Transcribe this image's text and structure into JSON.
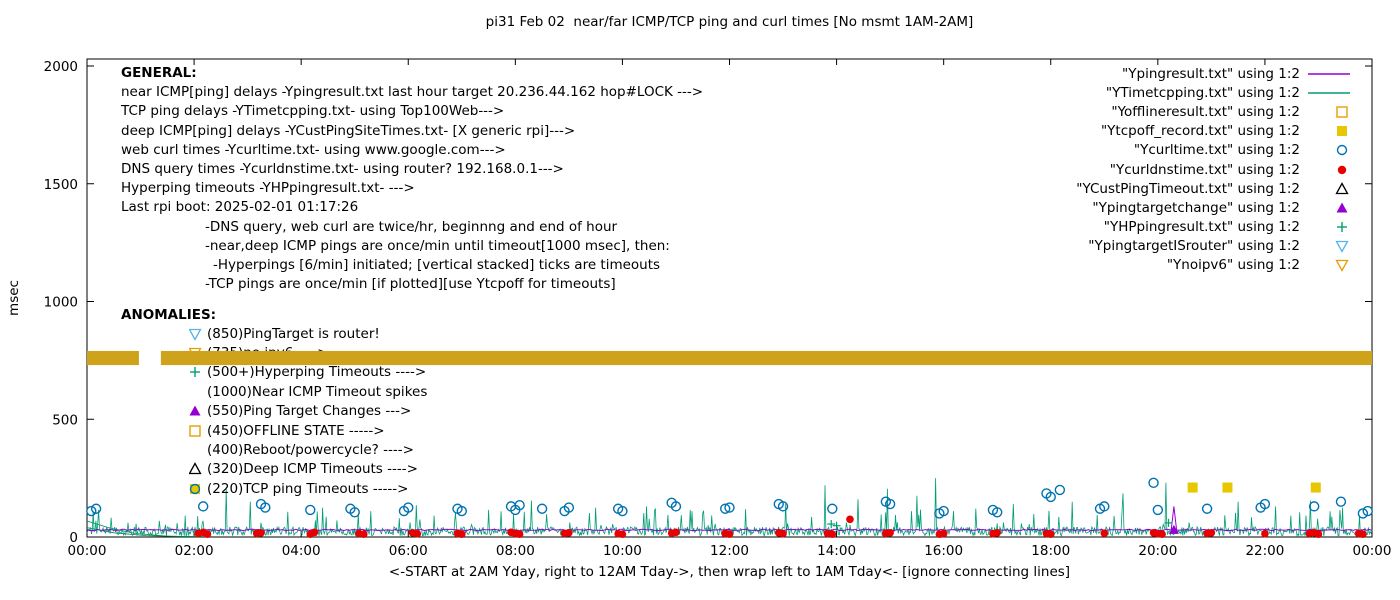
{
  "chart_data": {
    "type": "line",
    "title": "pi31 Feb 02  near/far ICMP/TCP ping and curl times [No msmt 1AM-2AM]",
    "xlabel": "<-START at 2AM Yday, right to 12AM Tday->, then wrap left to 1AM Tday<- [ignore connecting lines]",
    "ylabel": "msec",
    "xlim": [
      0,
      24
    ],
    "ylim": [
      0,
      2000
    ],
    "grid": false,
    "legend_position": "top-right",
    "x_ticks": {
      "hours": [
        0,
        2,
        4,
        6,
        8,
        10,
        12,
        14,
        16,
        18,
        20,
        22,
        24
      ],
      "labels": [
        "00:00",
        "02:00",
        "04:00",
        "06:00",
        "08:00",
        "10:00",
        "12:00",
        "14:00",
        "16:00",
        "18:00",
        "20:00",
        "22:00",
        "00:00"
      ]
    },
    "y_ticks": [
      0,
      500,
      1000,
      1500,
      2000
    ],
    "legend": [
      {
        "label": "\"Ypingresult.txt\" using 1:2",
        "marker": "line",
        "color": "#9400d3"
      },
      {
        "label": "\"YTimetcpping.txt\" using 1:2",
        "marker": "line",
        "color": "#009e73"
      },
      {
        "label": "\"Yofflineresult.txt\" using 1:2",
        "marker": "open-square",
        "color": "#e69f00"
      },
      {
        "label": "\"Ytcpoff_record.txt\" using 1:2",
        "marker": "filled-square",
        "color": "#e6c700"
      },
      {
        "label": "\"Ycurltime.txt\" using 1:2",
        "marker": "open-circle",
        "color": "#0072b2"
      },
      {
        "label": "\"Ycurldnstime.txt\" using 1:2",
        "marker": "filled-circle",
        "color": "#e60000"
      },
      {
        "label": "\"YCustPingTimeout.txt\" using 1:2",
        "marker": "open-triangle-up",
        "color": "#000000"
      },
      {
        "label": "\"Ypingtargetchange\" using 1:2",
        "marker": "filled-triangle-up",
        "color": "#9400d3"
      },
      {
        "label": "\"YHPpingresult.txt\" using 1:2",
        "marker": "plus",
        "color": "#009e73"
      },
      {
        "label": "\"YpingtargetISrouter\" using 1:2",
        "marker": "open-triangle-down",
        "color": "#56b4e9"
      },
      {
        "label": "\"Ynoipv6\" using 1:2",
        "marker": "open-triangle-down",
        "color": "#e69f00"
      }
    ],
    "band": {
      "name": "offline-state-band",
      "y_from": 730,
      "y_to": 790,
      "segments": [
        [
          0,
          0.97
        ],
        [
          1.38,
          24
        ]
      ],
      "color": "#cfa21b"
    },
    "series": {
      "ping_line": {
        "name": "Ypingresult near ICMP ping delay",
        "color": "#9400d3",
        "base": 27,
        "jitter": 6,
        "seed": 5,
        "step_min": 3,
        "spikes": [
          [
            20.3,
            130
          ]
        ]
      },
      "tcp_line": {
        "name": "YTimetcpping TCP ping delay",
        "color": "#009e73",
        "base": 5,
        "jitter": 38,
        "seed": 13,
        "step_min": 1,
        "spike_chance": 0.06,
        "spike_base": 50,
        "spike_extra": 70,
        "spikes": [
          [
            0.22,
            115
          ],
          [
            2.6,
            205
          ],
          [
            3.05,
            150
          ],
          [
            4.4,
            125
          ],
          [
            5.3,
            110
          ],
          [
            6.15,
            135
          ],
          [
            7.5,
            115
          ],
          [
            8.3,
            155
          ],
          [
            9.5,
            125
          ],
          [
            10.45,
            130
          ],
          [
            11.3,
            110
          ],
          [
            12.3,
            118
          ],
          [
            13.05,
            140
          ],
          [
            13.78,
            220
          ],
          [
            14.4,
            160
          ],
          [
            14.95,
            205
          ],
          [
            15.5,
            175
          ],
          [
            15.85,
            250
          ],
          [
            16.6,
            120
          ],
          [
            17.3,
            140
          ],
          [
            18.4,
            150
          ],
          [
            19.35,
            185
          ],
          [
            20.15,
            230
          ],
          [
            21.5,
            150
          ],
          [
            22.2,
            130
          ],
          [
            22.85,
            155
          ],
          [
            23.45,
            125
          ]
        ]
      },
      "curl_points": {
        "name": "Ycurltime web curl times",
        "color": "#0072b2",
        "marker": "open-circle",
        "points": [
          [
            0.08,
            110
          ],
          [
            0.17,
            120
          ],
          [
            2.17,
            130
          ],
          [
            3.25,
            140
          ],
          [
            3.33,
            125
          ],
          [
            4.17,
            115
          ],
          [
            4.92,
            120
          ],
          [
            5.0,
            105
          ],
          [
            5.92,
            110
          ],
          [
            6.0,
            125
          ],
          [
            6.92,
            120
          ],
          [
            7.0,
            110
          ],
          [
            7.92,
            130
          ],
          [
            8.0,
            115
          ],
          [
            8.08,
            135
          ],
          [
            8.5,
            120
          ],
          [
            8.92,
            110
          ],
          [
            9.0,
            125
          ],
          [
            9.92,
            120
          ],
          [
            10.0,
            110
          ],
          [
            10.92,
            145
          ],
          [
            11.0,
            130
          ],
          [
            11.92,
            120
          ],
          [
            12.0,
            125
          ],
          [
            12.92,
            140
          ],
          [
            13.0,
            130
          ],
          [
            13.92,
            120
          ],
          [
            14.92,
            150
          ],
          [
            15.0,
            140
          ],
          [
            15.92,
            100
          ],
          [
            16.0,
            110
          ],
          [
            16.92,
            115
          ],
          [
            17.0,
            105
          ],
          [
            17.92,
            185
          ],
          [
            18.0,
            170
          ],
          [
            18.17,
            200
          ],
          [
            18.92,
            120
          ],
          [
            19.0,
            130
          ],
          [
            19.92,
            230
          ],
          [
            20.0,
            115
          ],
          [
            20.92,
            120
          ],
          [
            21.92,
            125
          ],
          [
            22.0,
            140
          ],
          [
            22.92,
            130
          ],
          [
            23.42,
            150
          ],
          [
            23.83,
            100
          ],
          [
            23.92,
            110
          ]
        ]
      },
      "dns_points": {
        "name": "Ycurldnstime DNS query times",
        "color": "#e60000",
        "marker": "filled-circle",
        "points": [
          [
            2.08,
            15
          ],
          [
            2.17,
            20
          ],
          [
            2.25,
            12
          ],
          [
            3.17,
            15
          ],
          [
            3.25,
            18
          ],
          [
            4.17,
            12
          ],
          [
            4.25,
            20
          ],
          [
            5.08,
            15
          ],
          [
            5.17,
            12
          ],
          [
            6.08,
            18
          ],
          [
            6.17,
            14
          ],
          [
            6.92,
            15
          ],
          [
            7.0,
            12
          ],
          [
            7.92,
            20
          ],
          [
            8.0,
            15
          ],
          [
            8.08,
            12
          ],
          [
            8.92,
            15
          ],
          [
            9.0,
            18
          ],
          [
            9.92,
            14
          ],
          [
            10.0,
            12
          ],
          [
            10.92,
            16
          ],
          [
            11.0,
            20
          ],
          [
            11.92,
            15
          ],
          [
            12.0,
            12
          ],
          [
            12.92,
            18
          ],
          [
            13.0,
            14
          ],
          [
            13.83,
            15
          ],
          [
            13.92,
            12
          ],
          [
            14.25,
            75
          ],
          [
            14.92,
            15
          ],
          [
            15.0,
            18
          ],
          [
            15.92,
            12
          ],
          [
            16.0,
            15
          ],
          [
            16.92,
            14
          ],
          [
            17.0,
            18
          ],
          [
            17.92,
            15
          ],
          [
            18.0,
            12
          ],
          [
            19.0,
            16
          ],
          [
            19.92,
            18
          ],
          [
            20.0,
            14
          ],
          [
            20.08,
            12
          ],
          [
            20.92,
            15
          ],
          [
            21.0,
            18
          ],
          [
            22.0,
            14
          ],
          [
            22.83,
            15
          ],
          [
            22.92,
            18
          ],
          [
            23.0,
            12
          ],
          [
            23.75,
            15
          ],
          [
            23.83,
            12
          ]
        ]
      },
      "tcpoff_points": {
        "name": "Ytcpoff_record TCP ping timeouts",
        "color": "#e6c700",
        "marker": "filled-square",
        "points": [
          [
            20.65,
            210
          ],
          [
            21.3,
            210
          ],
          [
            22.95,
            210
          ]
        ]
      },
      "hp_points": {
        "name": "YHPpingresult hyperping marks",
        "color": "#009e73",
        "marker": "plus",
        "points": [
          [
            13.9,
            55
          ],
          [
            14.0,
            48
          ],
          [
            20.2,
            60
          ]
        ]
      },
      "targetchange_points": {
        "name": "Ypingtargetchange marks",
        "color": "#9400d3",
        "marker": "filled-triangle-up",
        "points": [
          [
            20.3,
            30
          ]
        ]
      },
      "connectors": {
        "name": "wrap-around connecting lines",
        "color": "#008855",
        "polylines": [
          [
            [
              0,
              68
            ],
            [
              0.4,
              40
            ],
            [
              0.9,
              15
            ],
            [
              1.5,
              4
            ],
            [
              2.0,
              2
            ]
          ],
          [
            [
              0,
              40
            ],
            [
              0.5,
              18
            ],
            [
              1.1,
              6
            ],
            [
              1.8,
              2
            ],
            [
              2.3,
              2
            ]
          ]
        ]
      }
    }
  },
  "notes": {
    "general": {
      "heading": "GENERAL:",
      "lines": [
        {
          "indent": 0,
          "text": "near ICMP[ping] delays -Ypingresult.txt last hour target 20.236.44.162 hop#LOCK --->"
        },
        {
          "indent": 0,
          "text": "TCP ping delays -YTimetcpping.txt- using Top100Web--->"
        },
        {
          "indent": 0,
          "text": "deep ICMP[ping] delays -YCustPingSiteTimes.txt- [X generic rpi]--->"
        },
        {
          "indent": 0,
          "text": "web curl times -Ycurltime.txt- using www.google.com--->"
        },
        {
          "indent": 0,
          "text": "DNS query times -Ycurldnstime.txt- using router? 192.168.0.1--->"
        },
        {
          "indent": 0,
          "text": "Hyperping timeouts -YHPpingresult.txt- --->"
        },
        {
          "indent": 0,
          "text": "Last rpi boot: 2025-02-01 01:17:26"
        },
        {
          "indent": 1,
          "text": "-DNS query, web curl are twice/hr, beginnng and end of hour"
        },
        {
          "indent": 1,
          "text": "-near,deep ICMP pings are once/min until timeout[1000 msec], then:"
        },
        {
          "indent": 2,
          "text": "-Hyperpings [6/min] initiated; [vertical stacked] ticks are timeouts"
        },
        {
          "indent": 1,
          "text": "-TCP pings are once/min [if plotted][use Ytcpoff for timeouts]"
        }
      ]
    },
    "anomalies": {
      "heading": "ANOMALIES:",
      "items": [
        {
          "marker": "open-triangle-down",
          "color": "#56b4e9",
          "text": "(850)PingTarget is router!"
        },
        {
          "marker": "open-triangle-down",
          "color": "#e69f00",
          "text": "(735)no ipv6 ---->",
          "obscured_by_band": true
        },
        {
          "marker": "plus",
          "color": "#009e73",
          "text": "(500+)Hyperping Timeouts ---->"
        },
        {
          "marker": "none",
          "color": "#000000",
          "text": "(1000)Near ICMP Timeout spikes"
        },
        {
          "marker": "filled-triangle-up",
          "color": "#9400d3",
          "text": "(550)Ping Target Changes --->"
        },
        {
          "marker": "open-square",
          "color": "#e69f00",
          "text": "(450)OFFLINE STATE ----->"
        },
        {
          "marker": "none",
          "color": "#000000",
          "text": "(400)Reboot/powercycle? ---->"
        },
        {
          "marker": "open-triangle-up",
          "color": "#000000",
          "text": "(320)Deep ICMP Timeouts ---->"
        },
        {
          "marker": "square-circle",
          "color": "#e6c700",
          "color2": "#0072b2",
          "text": "(220)TCP ping Timeouts ----->"
        }
      ]
    }
  }
}
